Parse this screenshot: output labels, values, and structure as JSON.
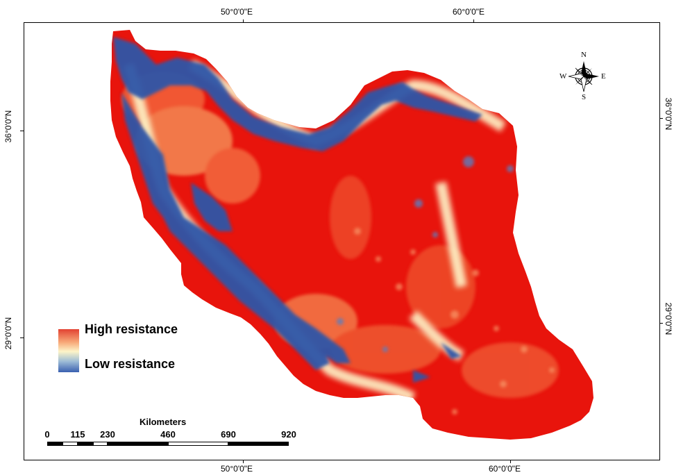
{
  "axes": {
    "top_ticks": [
      "50°0'0\"E",
      "60°0'0\"E"
    ],
    "bottom_ticks": [
      "50°0'0\"E",
      "60°0'0\"E"
    ],
    "left_ticks": [
      "36°0'0\"N",
      "29°0'0\"N"
    ],
    "right_ticks": [
      "36°0'0\"N",
      "29°0'0\"N"
    ]
  },
  "legend": {
    "high_label": "High resistance",
    "low_label": "Low resistance",
    "colors": [
      "#e24232",
      "#f7a777",
      "#fdf4c8",
      "#9dbcd6",
      "#3a60b0"
    ]
  },
  "scale_bar": {
    "title": "Kilometers",
    "labels": [
      "0",
      "115",
      "230",
      "460",
      "690",
      "920"
    ]
  },
  "compass": {
    "n": "N",
    "s": "S",
    "e": "E",
    "w": "W"
  },
  "map_colors": {
    "high": "#e8140c",
    "mid": "#fdf4c8",
    "low": "#2f56a8"
  }
}
